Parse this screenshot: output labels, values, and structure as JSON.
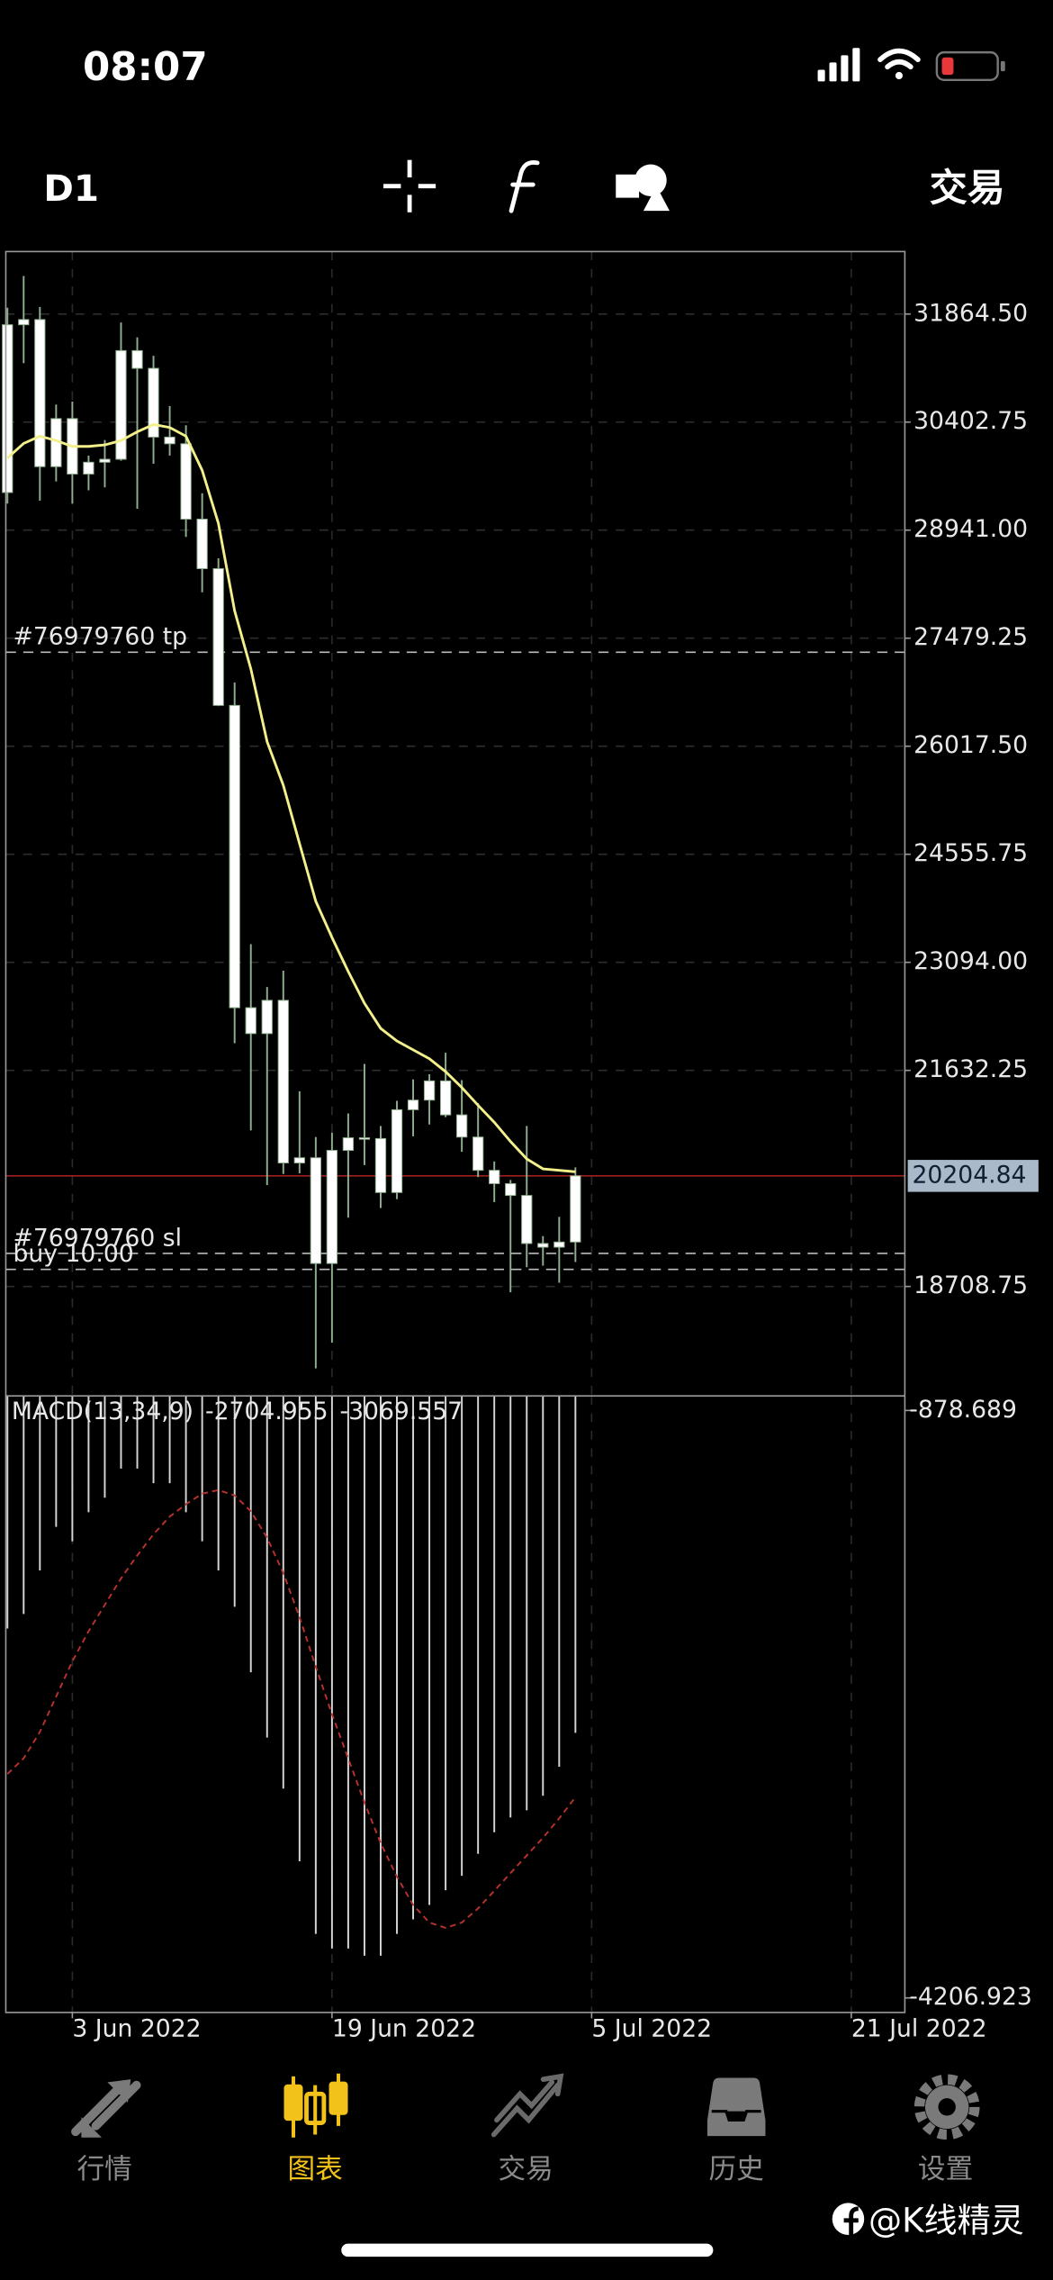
{
  "status_bar": {
    "time": "08:07"
  },
  "toolbar": {
    "period": "D1",
    "trade": "交易"
  },
  "chart_data": {
    "type": "candlestick",
    "body_color": "#ffffff",
    "wick_color": "#8fae8f",
    "ylim": [
      17228,
      32710
    ],
    "yticks": [
      {
        "value": 31864.5,
        "label": "31864.50"
      },
      {
        "value": 30402.75,
        "label": "30402.75"
      },
      {
        "value": 28941,
        "label": "28941.00"
      },
      {
        "value": 27479.25,
        "label": "27479.25"
      },
      {
        "value": 26017.5,
        "label": "26017.50"
      },
      {
        "value": 24555.75,
        "label": "24555.75"
      },
      {
        "value": 23094,
        "label": "23094.00"
      },
      {
        "value": 21632.25,
        "label": "21632.25"
      },
      {
        "value": 18708.75,
        "label": "18708.75"
      }
    ],
    "xlim": [
      -0.1,
      55.3
    ],
    "xticks": [
      {
        "value": 4,
        "label": "3 Jun 2022"
      },
      {
        "value": 20,
        "label": "19 Jun 2022"
      },
      {
        "value": 36,
        "label": "5 Jul 2022"
      },
      {
        "value": 52,
        "label": "21 Jul 2022"
      }
    ],
    "grid": true,
    "open": [
      29450,
      31720,
      31790,
      29800,
      30450,
      29700,
      29860,
      29900,
      31370,
      31130,
      30200,
      30110,
      29090,
      28420,
      26570,
      22480,
      22130,
      22580,
      20380,
      20450,
      19020,
      20550,
      20720,
      20710,
      19980,
      21100,
      21230,
      21490,
      21030,
      20730,
      20280,
      20100,
      19940,
      19290,
      19240,
      19310
    ],
    "high": [
      31950,
      32380,
      31960,
      30640,
      30680,
      29950,
      30160,
      31750,
      31550,
      31300,
      30620,
      30360,
      29440,
      28560,
      26880,
      23340,
      22760,
      22980,
      21350,
      20730,
      20790,
      21050,
      21720,
      20880,
      21220,
      21510,
      21580,
      21870,
      21500,
      21190,
      20400,
      20150,
      20880,
      19390,
      19650,
      20320
    ],
    "low": [
      29300,
      31200,
      29340,
      29600,
      29300,
      29480,
      29520,
      29880,
      29230,
      29840,
      29950,
      28850,
      28100,
      26560,
      22000,
      20820,
      20080,
      20230,
      20240,
      17600,
      17950,
      19640,
      20350,
      19770,
      19890,
      20740,
      20900,
      21000,
      20530,
      20190,
      19850,
      18630,
      18970,
      18990,
      18760,
      19040
    ],
    "close": [
      31720,
      31790,
      29800,
      30450,
      29700,
      29860,
      29900,
      31370,
      31130,
      30200,
      30110,
      29090,
      28420,
      26570,
      22480,
      22130,
      22580,
      20380,
      20450,
      19020,
      20550,
      20720,
      20710,
      19980,
      21100,
      21230,
      21490,
      21030,
      20730,
      20280,
      20100,
      19940,
      19290,
      19240,
      19310,
      20204.84
    ],
    "ma": {
      "color": "#f3f08c",
      "values": [
        29917,
        30114,
        30212,
        30153,
        30074,
        30074,
        30094,
        30153,
        30271,
        30370,
        30330,
        30212,
        29750,
        29032,
        27850,
        27064,
        26080,
        25490,
        24700,
        23920,
        23430,
        22970,
        22540,
        22200,
        22030,
        21910,
        21790,
        21615,
        21400,
        21160,
        20930,
        20670,
        20435,
        20300,
        20280,
        20260
      ]
    },
    "current_price": 20204.84,
    "price_line_color": "#a02020",
    "orders": [
      {
        "label": "#76979760 tp",
        "value": 27290
      },
      {
        "label": "#76979760 sl",
        "value": 19156
      },
      {
        "label": "buy 10.00",
        "value": 18940
      }
    ],
    "macd": {
      "name": "MACD(13,34,9)",
      "ylim": [
        -4289.3,
        -796.3
      ],
      "yticks": [
        -878.689,
        -4206.923
      ],
      "histogram": {
        "color": "#d6d6d6",
        "values": [
          -2114,
          -2032,
          -1785,
          -1538,
          -1620,
          -1455,
          -1373,
          -1208,
          -1208,
          -1291,
          -1291,
          -1455,
          -1620,
          -1785,
          -1991,
          -2362,
          -2732,
          -3021,
          -3433,
          -3844,
          -3927,
          -3927,
          -3968,
          -3968,
          -3844,
          -3762,
          -3680,
          -3597,
          -3515,
          -3391,
          -3268,
          -3185,
          -3144,
          -3062,
          -2897,
          -2704.955
        ]
      },
      "signal": {
        "color": "#b8322c",
        "values": [
          -2938,
          -2850,
          -2700,
          -2500,
          -2300,
          -2130,
          -1980,
          -1830,
          -1700,
          -1580,
          -1480,
          -1410,
          -1350,
          -1330,
          -1360,
          -1450,
          -1600,
          -1800,
          -2050,
          -2330,
          -2600,
          -2850,
          -3100,
          -3330,
          -3520,
          -3680,
          -3780,
          -3810,
          -3780,
          -3700,
          -3600,
          -3500,
          -3400,
          -3300,
          -3190,
          -3069.557
        ]
      }
    }
  },
  "tab_bar": {
    "tabs": [
      "行情",
      "图表",
      "交易",
      "历史",
      "设置"
    ],
    "active": 1,
    "active_color": "#f2c21b"
  },
  "watermark": "@K线精灵"
}
